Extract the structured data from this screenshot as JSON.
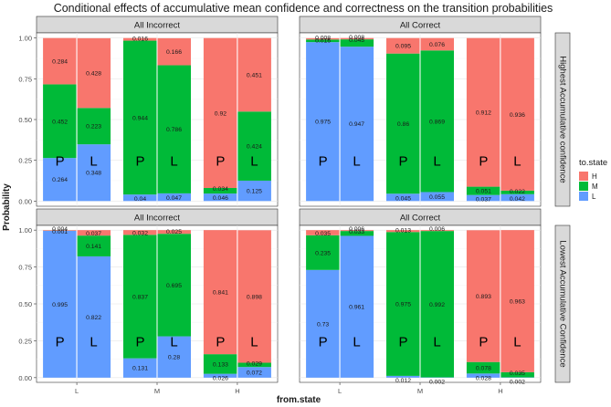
{
  "chart_data": {
    "type": "bar",
    "title": "Conditional effects of accumulative mean confidence and correctness on the transition probabilities",
    "xlabel": "from.state",
    "ylabel": "Probability",
    "ylim": [
      0,
      1
    ],
    "y_ticks": [
      "0.00",
      "0.25",
      "0.50",
      "0.75",
      "1.00"
    ],
    "categories": [
      "L",
      "M",
      "H"
    ],
    "bar_letters": [
      "P",
      "L"
    ],
    "column_strips": [
      "All Incorrect",
      "All Correct"
    ],
    "row_strips": [
      "Highest Accumulative confidence",
      "Lowest Accumulative Confidence"
    ],
    "stack_order": [
      "L",
      "M",
      "H"
    ],
    "legend": {
      "title": "to.state",
      "placement": "right",
      "entries": [
        {
          "key": "H",
          "label": "H",
          "color": "#F8766D"
        },
        {
          "key": "M",
          "label": "M",
          "color": "#00BA38"
        },
        {
          "key": "L",
          "label": "L",
          "color": "#619CFF"
        }
      ]
    },
    "grid": true,
    "panels": [
      {
        "row": 0,
        "col": 0,
        "groups": [
          {
            "from": "L",
            "bars": [
              {
                "L": 0.264,
                "M": 0.452,
                "H": 0.284,
                "labels": {
                  "L": "0.264",
                  "M": "0.452",
                  "H": "0.284"
                }
              },
              {
                "L": 0.348,
                "M": 0.223,
                "H": 0.428,
                "labels": {
                  "L": "0.348",
                  "M": "0.223",
                  "H": "0.428"
                }
              }
            ]
          },
          {
            "from": "M",
            "bars": [
              {
                "L": 0.04,
                "M": 0.944,
                "H": 0.016,
                "labels": {
                  "L": "0.04",
                  "M": "0.944",
                  "H": "0.016"
                }
              },
              {
                "L": 0.047,
                "M": 0.786,
                "H": 0.166,
                "labels": {
                  "L": "0.047",
                  "M": "0.786",
                  "H": "0.166"
                }
              }
            ]
          },
          {
            "from": "H",
            "bars": [
              {
                "L": 0.046,
                "M": 0.034,
                "H": 0.92,
                "labels": {
                  "L": "0.046",
                  "M": "0.034",
                  "H": "0.92"
                }
              },
              {
                "L": 0.125,
                "M": 0.424,
                "H": 0.451,
                "labels": {
                  "L": "0.125",
                  "M": "0.424",
                  "H": "0.451"
                }
              }
            ]
          }
        ]
      },
      {
        "row": 0,
        "col": 1,
        "groups": [
          {
            "from": "L",
            "bars": [
              {
                "L": 0.975,
                "M": 0.016,
                "H": 0.008,
                "labels": {
                  "L": "0.975",
                  "M": "0.016",
                  "H": "0.008"
                }
              },
              {
                "L": 0.947,
                "M": 0.045,
                "H": 0.008,
                "labels": {
                  "L": "0.947",
                  "M": "0.045",
                  "H": "0.008"
                }
              }
            ]
          },
          {
            "from": "M",
            "bars": [
              {
                "L": 0.045,
                "M": 0.86,
                "H": 0.095,
                "labels": {
                  "L": "0.045",
                  "M": "0.86",
                  "H": "0.095"
                }
              },
              {
                "L": 0.055,
                "M": 0.869,
                "H": 0.076,
                "labels": {
                  "L": "0.055",
                  "M": "0.869",
                  "H": "0.076"
                }
              }
            ]
          },
          {
            "from": "H",
            "bars": [
              {
                "L": 0.037,
                "M": 0.051,
                "H": 0.912,
                "labels": {
                  "L": "0.037",
                  "M": "0.051",
                  "H": "0.912"
                }
              },
              {
                "L": 0.042,
                "M": 0.022,
                "H": 0.936,
                "labels": {
                  "L": "0.042",
                  "M": "0.022",
                  "H": "0.936"
                }
              }
            ]
          }
        ]
      },
      {
        "row": 1,
        "col": 0,
        "groups": [
          {
            "from": "L",
            "bars": [
              {
                "L": 0.995,
                "M": 0.001,
                "H": 0.004,
                "labels": {
                  "L": "0.995",
                  "M": "0.001",
                  "H": "0.004"
                }
              },
              {
                "L": 0.822,
                "M": 0.141,
                "H": 0.037,
                "labels": {
                  "L": "0.822",
                  "M": "0.141",
                  "H": "0.037"
                }
              }
            ]
          },
          {
            "from": "M",
            "bars": [
              {
                "L": 0.131,
                "M": 0.837,
                "H": 0.032,
                "labels": {
                  "L": "0.131",
                  "M": "0.837",
                  "H": "0.032"
                }
              },
              {
                "L": 0.28,
                "M": 0.695,
                "H": 0.025,
                "labels": {
                  "L": "0.28",
                  "M": "0.695",
                  "H": "0.025"
                }
              }
            ]
          },
          {
            "from": "H",
            "bars": [
              {
                "L": 0.026,
                "M": 0.133,
                "H": 0.841,
                "labels": {
                  "L": "0.026",
                  "M": "0.133",
                  "H": "0.841"
                }
              },
              {
                "L": 0.072,
                "M": 0.029,
                "H": 0.898,
                "labels": {
                  "L": "0.072",
                  "M": "0.029",
                  "H": "0.898"
                }
              }
            ]
          }
        ]
      },
      {
        "row": 1,
        "col": 1,
        "groups": [
          {
            "from": "L",
            "bars": [
              {
                "L": 0.73,
                "M": 0.235,
                "H": 0.035,
                "labels": {
                  "L": "0.73",
                  "M": "0.235",
                  "H": "0.035"
                }
              },
              {
                "L": 0.961,
                "M": 0.033,
                "H": 0.006,
                "labels": {
                  "L": "0.961",
                  "M": "0.033",
                  "H": "0.006"
                }
              }
            ]
          },
          {
            "from": "M",
            "bars": [
              {
                "L": 0.012,
                "M": 0.975,
                "H": 0.013,
                "labels": {
                  "L": "0.012",
                  "M": "0.975",
                  "H": "0.013"
                }
              },
              {
                "L": 0.002,
                "M": 0.992,
                "H": 0.006,
                "labels": {
                  "L": "0.002",
                  "M": "0.992",
                  "H": "0.006"
                }
              }
            ]
          },
          {
            "from": "H",
            "bars": [
              {
                "L": 0.028,
                "M": 0.078,
                "H": 0.893,
                "labels": {
                  "L": "0.028",
                  "M": "0.078",
                  "H": "0.893"
                }
              },
              {
                "L": 0.002,
                "M": 0.035,
                "H": 0.963,
                "labels": {
                  "L": "0.002",
                  "M": "0.035",
                  "H": "0.963"
                }
              }
            ]
          }
        ]
      }
    ]
  }
}
